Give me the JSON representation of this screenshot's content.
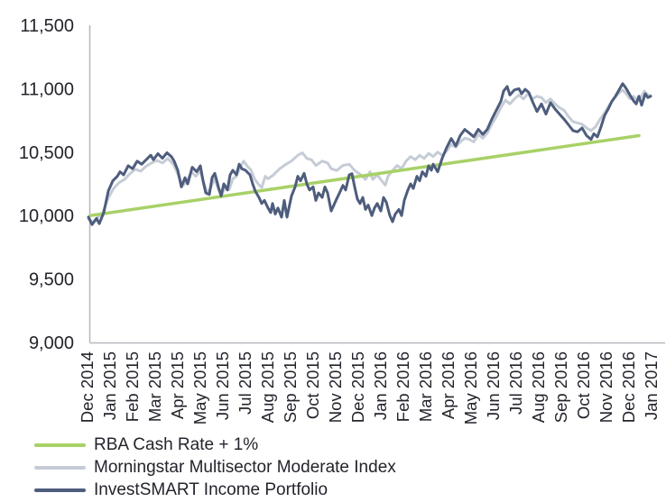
{
  "chart_data": {
    "type": "line",
    "title": "",
    "grid": false,
    "legend_position": "bottom-left",
    "background": "#ffffff",
    "axis_color": "#b5b7bc",
    "text_color": "#23242c",
    "y_axis": {
      "min": 9000,
      "max": 11500,
      "tick_values": [
        11500,
        11000,
        10500,
        10000,
        9500,
        9000
      ],
      "tick_labels": [
        "11,500",
        "11,000",
        "10,500",
        "10,000",
        "9,500",
        "9,000"
      ]
    },
    "x_labels": [
      "Dec 2014",
      "Jan 2015",
      "Feb 2015",
      "Mar 2015",
      "Apr 2015",
      "May 2015",
      "Jun 2015",
      "Jul 2015",
      "Aug 2015",
      "Sep 2015",
      "Oct 2015",
      "Nov 2015",
      "Dec 2015",
      "Jan 2016",
      "Feb 2016",
      "Mar 2016",
      "Apr 2016",
      "May 2016",
      "Jun 2016",
      "Jul 2016",
      "Aug 2016",
      "Sep 2016",
      "Oct 2016",
      "Nov 2016",
      "Dec 2016",
      "Jan 2017"
    ],
    "series": [
      {
        "key": "morningstar",
        "name": "Morningstar Multisector Moderate Index",
        "color": "#c6ccd6",
        "stroke_width": 3,
        "points": [
          [
            0.04,
            9975
          ],
          [
            0.24,
            9945
          ],
          [
            0.44,
            9985
          ],
          [
            0.64,
            10010
          ],
          [
            0.92,
            10140
          ],
          [
            1.16,
            10215
          ],
          [
            1.4,
            10260
          ],
          [
            1.64,
            10285
          ],
          [
            1.88,
            10330
          ],
          [
            2.12,
            10365
          ],
          [
            2.36,
            10350
          ],
          [
            2.6,
            10390
          ],
          [
            2.84,
            10415
          ],
          [
            3.08,
            10435
          ],
          [
            3.32,
            10415
          ],
          [
            3.56,
            10450
          ],
          [
            3.8,
            10405
          ],
          [
            4.0,
            10330
          ],
          [
            4.2,
            10235
          ],
          [
            4.4,
            10265
          ],
          [
            4.6,
            10345
          ],
          [
            4.8,
            10310
          ],
          [
            5.0,
            10355
          ],
          [
            5.16,
            10250
          ],
          [
            5.32,
            10170
          ],
          [
            5.48,
            10230
          ],
          [
            5.64,
            10290
          ],
          [
            5.8,
            10205
          ],
          [
            5.96,
            10165
          ],
          [
            6.12,
            10235
          ],
          [
            6.28,
            10205
          ],
          [
            6.44,
            10290
          ],
          [
            6.6,
            10310
          ],
          [
            6.76,
            10380
          ],
          [
            6.92,
            10429
          ],
          [
            7.08,
            10390
          ],
          [
            7.24,
            10360
          ],
          [
            7.4,
            10290
          ],
          [
            7.56,
            10250
          ],
          [
            7.72,
            10220
          ],
          [
            7.88,
            10310
          ],
          [
            8.0,
            10290
          ],
          [
            8.24,
            10320
          ],
          [
            8.52,
            10370
          ],
          [
            8.8,
            10405
          ],
          [
            9.04,
            10430
          ],
          [
            9.32,
            10475
          ],
          [
            9.52,
            10495
          ],
          [
            9.72,
            10450
          ],
          [
            9.92,
            10440
          ],
          [
            10.12,
            10395
          ],
          [
            10.4,
            10430
          ],
          [
            10.64,
            10415
          ],
          [
            10.8,
            10370
          ],
          [
            11.04,
            10355
          ],
          [
            11.32,
            10395
          ],
          [
            11.6,
            10405
          ],
          [
            11.84,
            10355
          ],
          [
            12.12,
            10320
          ],
          [
            12.32,
            10285
          ],
          [
            12.52,
            10345
          ],
          [
            12.64,
            10285
          ],
          [
            12.84,
            10320
          ],
          [
            13.04,
            10275
          ],
          [
            13.2,
            10240
          ],
          [
            13.32,
            10310
          ],
          [
            13.52,
            10355
          ],
          [
            13.72,
            10395
          ],
          [
            13.92,
            10370
          ],
          [
            14.12,
            10430
          ],
          [
            14.32,
            10465
          ],
          [
            14.52,
            10440
          ],
          [
            14.72,
            10475
          ],
          [
            14.92,
            10450
          ],
          [
            15.12,
            10490
          ],
          [
            15.32,
            10465
          ],
          [
            15.52,
            10500
          ],
          [
            15.72,
            10475
          ],
          [
            15.92,
            10510
          ],
          [
            16.12,
            10560
          ],
          [
            16.32,
            10540
          ],
          [
            16.52,
            10580
          ],
          [
            16.72,
            10610
          ],
          [
            16.92,
            10600
          ],
          [
            17.12,
            10580
          ],
          [
            17.32,
            10640
          ],
          [
            17.52,
            10610
          ],
          [
            17.72,
            10650
          ],
          [
            17.92,
            10720
          ],
          [
            18.12,
            10780
          ],
          [
            18.32,
            10850
          ],
          [
            18.52,
            10910
          ],
          [
            18.72,
            10880
          ],
          [
            18.92,
            10920
          ],
          [
            19.12,
            10950
          ],
          [
            19.32,
            10920
          ],
          [
            19.52,
            10960
          ],
          [
            19.72,
            10920
          ],
          [
            19.92,
            10940
          ],
          [
            20.12,
            10930
          ],
          [
            20.32,
            10890
          ],
          [
            20.52,
            10920
          ],
          [
            20.72,
            10880
          ],
          [
            20.92,
            10850
          ],
          [
            21.12,
            10830
          ],
          [
            21.32,
            10780
          ],
          [
            21.52,
            10740
          ],
          [
            21.72,
            10730
          ],
          [
            21.92,
            10720
          ],
          [
            22.12,
            10690
          ],
          [
            22.32,
            10670
          ],
          [
            22.52,
            10700
          ],
          [
            22.72,
            10760
          ],
          [
            22.92,
            10810
          ],
          [
            23.12,
            10870
          ],
          [
            23.32,
            10920
          ],
          [
            23.52,
            10960
          ],
          [
            23.72,
            10990
          ],
          [
            23.88,
            10960
          ],
          [
            24.04,
            10920
          ],
          [
            24.2,
            10940
          ],
          [
            24.36,
            10910
          ],
          [
            24.52,
            10930
          ],
          [
            24.68,
            10980
          ],
          [
            24.84,
            10950
          ],
          [
            24.96,
            10945
          ]
        ]
      },
      {
        "key": "rba",
        "name": "RBA Cash Rate + 1%",
        "color": "#a8d167",
        "stroke_width": 3.5,
        "points": [
          [
            0.12,
            10000
          ],
          [
            24.44,
            10630
          ]
        ]
      },
      {
        "key": "investsmart",
        "name": "InvestSMART Income Portfolio",
        "color": "#4e5d7d",
        "stroke_width": 3,
        "points": [
          [
            0.04,
            9988
          ],
          [
            0.2,
            9929
          ],
          [
            0.4,
            9978
          ],
          [
            0.52,
            9936
          ],
          [
            0.72,
            10024
          ],
          [
            0.92,
            10193
          ],
          [
            1.12,
            10274
          ],
          [
            1.32,
            10310
          ],
          [
            1.44,
            10345
          ],
          [
            1.6,
            10321
          ],
          [
            1.8,
            10393
          ],
          [
            2.0,
            10369
          ],
          [
            2.2,
            10429
          ],
          [
            2.4,
            10405
          ],
          [
            2.6,
            10440
          ],
          [
            2.8,
            10476
          ],
          [
            2.92,
            10440
          ],
          [
            3.12,
            10488
          ],
          [
            3.32,
            10452
          ],
          [
            3.52,
            10495
          ],
          [
            3.72,
            10464
          ],
          [
            3.84,
            10429
          ],
          [
            4.0,
            10357
          ],
          [
            4.16,
            10226
          ],
          [
            4.32,
            10298
          ],
          [
            4.44,
            10250
          ],
          [
            4.64,
            10381
          ],
          [
            4.84,
            10345
          ],
          [
            5.0,
            10393
          ],
          [
            5.12,
            10274
          ],
          [
            5.24,
            10179
          ],
          [
            5.4,
            10167
          ],
          [
            5.52,
            10298
          ],
          [
            5.64,
            10333
          ],
          [
            5.8,
            10226
          ],
          [
            5.92,
            10155
          ],
          [
            6.04,
            10250
          ],
          [
            6.2,
            10202
          ],
          [
            6.32,
            10321
          ],
          [
            6.44,
            10357
          ],
          [
            6.6,
            10321
          ],
          [
            6.72,
            10405
          ],
          [
            6.84,
            10369
          ],
          [
            7.0,
            10357
          ],
          [
            7.2,
            10321
          ],
          [
            7.32,
            10250
          ],
          [
            7.44,
            10190
          ],
          [
            7.6,
            10143
          ],
          [
            7.72,
            10095
          ],
          [
            7.84,
            10119
          ],
          [
            8.0,
            10060
          ],
          [
            8.12,
            10024
          ],
          [
            8.2,
            10095
          ],
          [
            8.32,
            10012
          ],
          [
            8.44,
            10060
          ],
          [
            8.6,
            9988
          ],
          [
            8.72,
            10119
          ],
          [
            8.84,
            9988
          ],
          [
            9.04,
            10155
          ],
          [
            9.2,
            10226
          ],
          [
            9.32,
            10310
          ],
          [
            9.44,
            10274
          ],
          [
            9.6,
            10333
          ],
          [
            9.72,
            10250
          ],
          [
            9.84,
            10202
          ],
          [
            10.0,
            10226
          ],
          [
            10.12,
            10119
          ],
          [
            10.24,
            10179
          ],
          [
            10.4,
            10143
          ],
          [
            10.52,
            10226
          ],
          [
            10.64,
            10179
          ],
          [
            10.8,
            10036
          ],
          [
            10.92,
            10083
          ],
          [
            11.04,
            10131
          ],
          [
            11.2,
            10190
          ],
          [
            11.32,
            10238
          ],
          [
            11.44,
            10202
          ],
          [
            11.6,
            10321
          ],
          [
            11.72,
            10330
          ],
          [
            11.84,
            10226
          ],
          [
            11.96,
            10131
          ],
          [
            12.08,
            10095
          ],
          [
            12.2,
            10143
          ],
          [
            12.32,
            10048
          ],
          [
            12.44,
            10083
          ],
          [
            12.6,
            10000
          ],
          [
            12.72,
            10060
          ],
          [
            12.84,
            10095
          ],
          [
            13.0,
            10036
          ],
          [
            13.12,
            10143
          ],
          [
            13.24,
            10107
          ],
          [
            13.4,
            10000
          ],
          [
            13.52,
            9952
          ],
          [
            13.64,
            10012
          ],
          [
            13.8,
            10048
          ],
          [
            13.92,
            10000
          ],
          [
            14.04,
            10119
          ],
          [
            14.2,
            10202
          ],
          [
            14.32,
            10250
          ],
          [
            14.44,
            10214
          ],
          [
            14.6,
            10310
          ],
          [
            14.72,
            10274
          ],
          [
            14.84,
            10345
          ],
          [
            15.0,
            10310
          ],
          [
            15.12,
            10393
          ],
          [
            15.24,
            10357
          ],
          [
            15.32,
            10405
          ],
          [
            15.52,
            10345
          ],
          [
            15.72,
            10452
          ],
          [
            15.92,
            10536
          ],
          [
            16.12,
            10607
          ],
          [
            16.32,
            10548
          ],
          [
            16.52,
            10631
          ],
          [
            16.72,
            10679
          ],
          [
            16.92,
            10650
          ],
          [
            17.12,
            10621
          ],
          [
            17.32,
            10680
          ],
          [
            17.52,
            10640
          ],
          [
            17.72,
            10680
          ],
          [
            17.92,
            10760
          ],
          [
            18.12,
            10830
          ],
          [
            18.32,
            10900
          ],
          [
            18.44,
            10980
          ],
          [
            18.6,
            11017
          ],
          [
            18.72,
            10950
          ],
          [
            18.92,
            10990
          ],
          [
            19.12,
            11000
          ],
          [
            19.24,
            10960
          ],
          [
            19.4,
            10995
          ],
          [
            19.56,
            10970
          ],
          [
            19.72,
            10900
          ],
          [
            19.92,
            10820
          ],
          [
            20.12,
            10880
          ],
          [
            20.32,
            10800
          ],
          [
            20.52,
            10890
          ],
          [
            20.72,
            10840
          ],
          [
            20.92,
            10800
          ],
          [
            21.12,
            10760
          ],
          [
            21.32,
            10715
          ],
          [
            21.52,
            10670
          ],
          [
            21.72,
            10660
          ],
          [
            21.92,
            10690
          ],
          [
            22.12,
            10630
          ],
          [
            22.32,
            10600
          ],
          [
            22.44,
            10645
          ],
          [
            22.6,
            10620
          ],
          [
            22.76,
            10700
          ],
          [
            22.92,
            10790
          ],
          [
            23.08,
            10840
          ],
          [
            23.24,
            10900
          ],
          [
            23.4,
            10940
          ],
          [
            23.56,
            10990
          ],
          [
            23.72,
            11040
          ],
          [
            23.88,
            11000
          ],
          [
            24.04,
            10950
          ],
          [
            24.2,
            10905
          ],
          [
            24.32,
            10880
          ],
          [
            24.44,
            10940
          ],
          [
            24.56,
            10870
          ],
          [
            24.72,
            10960
          ],
          [
            24.84,
            10930
          ],
          [
            24.96,
            10940
          ]
        ]
      }
    ],
    "legend": [
      {
        "label": "RBA Cash Rate + 1%",
        "color": "#a8d167"
      },
      {
        "label": "Morningstar Multisector Moderate Index",
        "color": "#c6ccd6"
      },
      {
        "label": "InvestSMART Income Portfolio",
        "color": "#4e5d7d"
      }
    ]
  }
}
